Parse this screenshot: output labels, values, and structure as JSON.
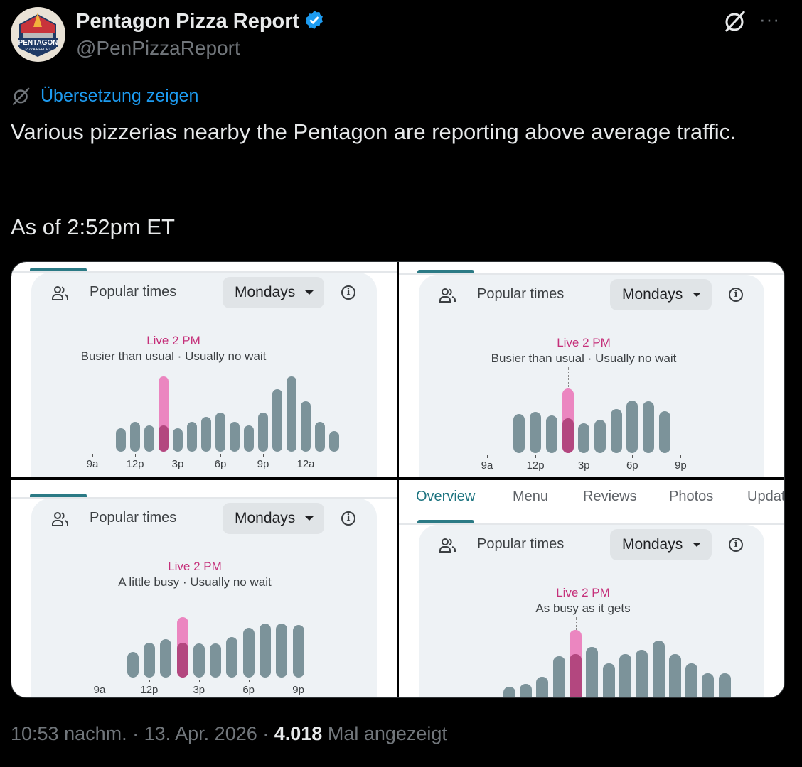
{
  "tweet": {
    "author_name": "Pentagon Pizza Report",
    "handle": "@PenPizzaReport",
    "avatar_text": "PENTAGON PIZZA REPORT",
    "translate_label": "Übersetzung zeigen",
    "text_line1": "Various pizzerias nearby the Pentagon are reporting above average traffic.",
    "text_line2": "As of 2:52pm ET",
    "more_label": "···",
    "footer": {
      "time": "10:53 nachm.",
      "sep1": " · ",
      "date": "13. Apr. 2026",
      "sep2": " · ",
      "views": "4.018",
      "views_label": " Mal angezeigt"
    },
    "colors": {
      "accent": "#1d9bf0",
      "live": "#c5307a",
      "bar": "#7c939a",
      "live_bar": "#eb86c0",
      "usual_bar": "#b3477f"
    }
  },
  "screenshot_tabs": [
    "Overview",
    "Menu",
    "Reviews",
    "Photos",
    "Updat"
  ],
  "chart_data": [
    {
      "type": "bar",
      "title": "Popular times",
      "day": "Mondays",
      "live_label": "Live 2 PM",
      "status": "Busier than usual · Usually no wait",
      "x_ticks": [
        "9a",
        "12p",
        "3p",
        "6p",
        "9p",
        "12a"
      ],
      "categories": [
        "11a",
        "12p",
        "1p",
        "2p",
        "3p",
        "4p",
        "5p",
        "6p",
        "7p",
        "8p",
        "9p",
        "10p",
        "11p",
        "12a",
        "1a",
        "2a"
      ],
      "values": [
        30,
        38,
        34,
        34,
        30,
        38,
        45,
        50,
        38,
        34,
        50,
        80,
        96,
        65,
        38,
        26
      ],
      "live": {
        "hour": "2p",
        "value": 96
      }
    },
    {
      "type": "bar",
      "title": "Popular times",
      "day": "Mondays",
      "live_label": "Live 2 PM",
      "status": "Busier than usual · Usually no wait",
      "x_ticks": [
        "9a",
        "12p",
        "3p",
        "6p",
        "9p"
      ],
      "categories": [
        "11a",
        "12p",
        "1p",
        "2p",
        "3p",
        "4p",
        "5p",
        "6p",
        "7p",
        "8p"
      ],
      "values": [
        50,
        53,
        48,
        45,
        38,
        43,
        56,
        67,
        66,
        54
      ],
      "live": {
        "hour": "2p",
        "value": 83
      }
    },
    {
      "type": "bar",
      "title": "Popular times",
      "day": "Mondays",
      "live_label": "Live 2 PM",
      "status": "A little busy · Usually no wait",
      "x_ticks": [
        "9a",
        "12p",
        "3p",
        "6p",
        "9p"
      ],
      "categories": [
        "11a",
        "12p",
        "1p",
        "2p",
        "3p",
        "4p",
        "5p",
        "6p",
        "7p",
        "8p",
        "9p"
      ],
      "values": [
        33,
        45,
        49,
        45,
        44,
        44,
        52,
        64,
        69,
        69,
        67
      ],
      "live": {
        "hour": "2p",
        "value": 77
      }
    },
    {
      "type": "bar",
      "title": "Popular times",
      "day": "Mondays",
      "live_label": "Live 2 PM",
      "status": "As busy as it gets",
      "x_ticks": [],
      "categories": [
        "10a",
        "11a",
        "12p",
        "1p",
        "2p",
        "3p",
        "4p",
        "5p",
        "6p",
        "7p",
        "8p",
        "9p",
        "10p",
        "11p"
      ],
      "values": [
        31,
        35,
        44,
        70,
        73,
        82,
        61,
        73,
        78,
        90,
        73,
        61,
        48,
        48
      ],
      "live": {
        "hour": "2p",
        "value": 104
      }
    }
  ]
}
